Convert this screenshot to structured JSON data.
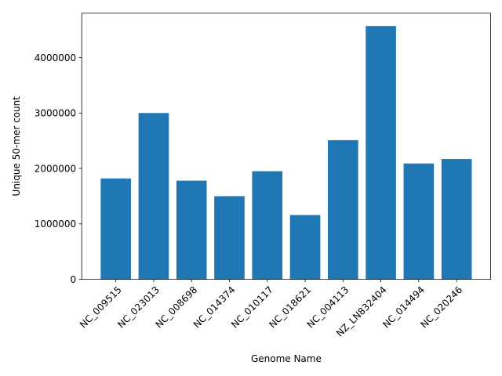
{
  "chart_data": {
    "type": "bar",
    "title": "",
    "xlabel": "Genome Name",
    "ylabel": "Unique 50-mer count",
    "categories": [
      "NC_009515",
      "NC_023013",
      "NC_008698",
      "NC_014374",
      "NC_010117",
      "NC_018621",
      "NC_004113",
      "NZ_LN832404",
      "NC_014494",
      "NC_020246"
    ],
    "values": [
      1820000,
      3000000,
      1780000,
      1500000,
      1950000,
      1160000,
      2510000,
      4570000,
      2090000,
      2170000
    ],
    "yticks": [
      0,
      1000000,
      2000000,
      3000000,
      4000000
    ],
    "ytick_labels": [
      "0",
      "1000000",
      "2000000",
      "3000000",
      "4000000"
    ],
    "ylim": [
      0,
      4800000
    ],
    "bar_color": "#1f77b4",
    "grid": false
  }
}
